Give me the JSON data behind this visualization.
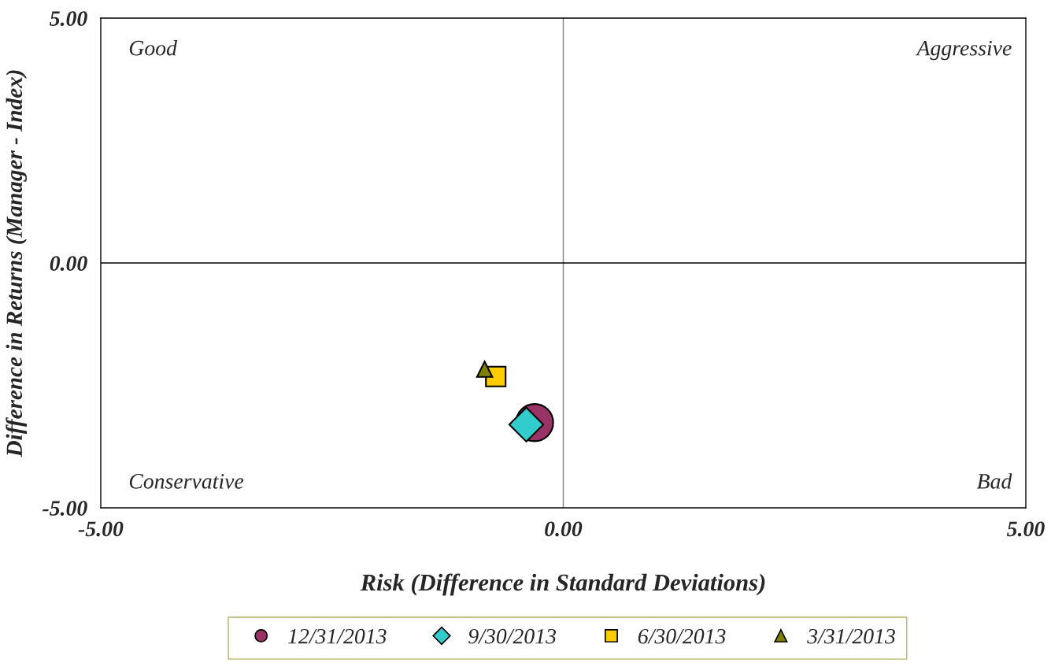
{
  "chart_data": {
    "type": "scatter",
    "xlabel": "Risk (Difference in Standard Deviations)",
    "ylabel": "Difference in Returns (Manager - Index)",
    "xlim": [
      -5,
      5
    ],
    "ylim": [
      -5,
      5
    ],
    "xticks": [
      {
        "value": -5,
        "label": "-5.00"
      },
      {
        "value": 0,
        "label": "0.00"
      },
      {
        "value": 5,
        "label": "5.00"
      }
    ],
    "yticks": [
      {
        "value": -5,
        "label": "-5.00"
      },
      {
        "value": 0,
        "label": "0.00"
      },
      {
        "value": 5,
        "label": "5.00"
      }
    ],
    "series": [
      {
        "name": "12/31/2013",
        "color": "#993366",
        "marker": "circle",
        "x": [
          -0.31
        ],
        "values": [
          -3.26
        ]
      },
      {
        "name": "9/30/2013",
        "color": "#33cccc",
        "marker": "diamond",
        "x": [
          -0.4
        ],
        "values": [
          -3.3
        ]
      },
      {
        "name": "6/30/2013",
        "color": "#ffcc00",
        "marker": "square",
        "x": [
          -0.73
        ],
        "values": [
          -2.32
        ]
      },
      {
        "name": "3/31/2013",
        "color": "#808000",
        "marker": "triangle",
        "x": [
          -0.85
        ],
        "values": [
          -2.17
        ]
      }
    ],
    "ref_lines": [
      {
        "axis": "x",
        "value": 0,
        "label": null,
        "color": "#808080"
      },
      {
        "axis": "y",
        "value": 0,
        "label": null,
        "color": "#000000"
      }
    ],
    "annotations": [
      "Good",
      "Aggressive",
      "Conservative",
      "Bad"
    ],
    "grid": false,
    "legend": "bottom"
  }
}
